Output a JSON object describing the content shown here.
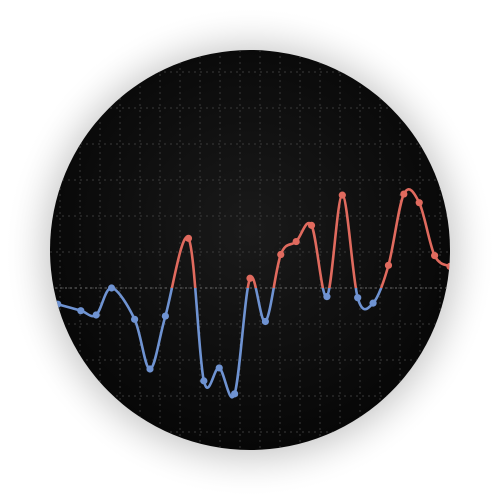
{
  "chart_data": {
    "type": "line",
    "title": "",
    "xlabel": "",
    "ylabel": "",
    "grid": true,
    "legend": "none",
    "baseline": 0,
    "colors": {
      "background": "#0d0d0d",
      "grid": "#3a3a3a",
      "baseline": "#5a5a5a",
      "above": "#e06a5e",
      "below": "#6f93d2",
      "halo": "#bfbfbf"
    },
    "x": [
      1,
      4,
      6,
      8,
      11,
      13,
      15,
      18,
      20,
      22,
      24,
      26,
      28,
      30,
      32,
      34,
      36,
      38,
      40,
      42,
      44,
      46,
      48,
      50,
      52
    ],
    "y": [
      -0.15,
      -0.21,
      -0.25,
      0.0,
      -0.29,
      -0.75,
      -0.26,
      0.46,
      -0.86,
      -0.74,
      -0.98,
      0.09,
      -0.31,
      0.31,
      0.43,
      0.58,
      -0.08,
      0.86,
      -0.09,
      -0.14,
      0.21,
      0.87,
      0.79,
      0.3,
      0.2
    ],
    "xlim": [
      0,
      52
    ],
    "ylim": [
      -1.3,
      1.3
    ]
  }
}
